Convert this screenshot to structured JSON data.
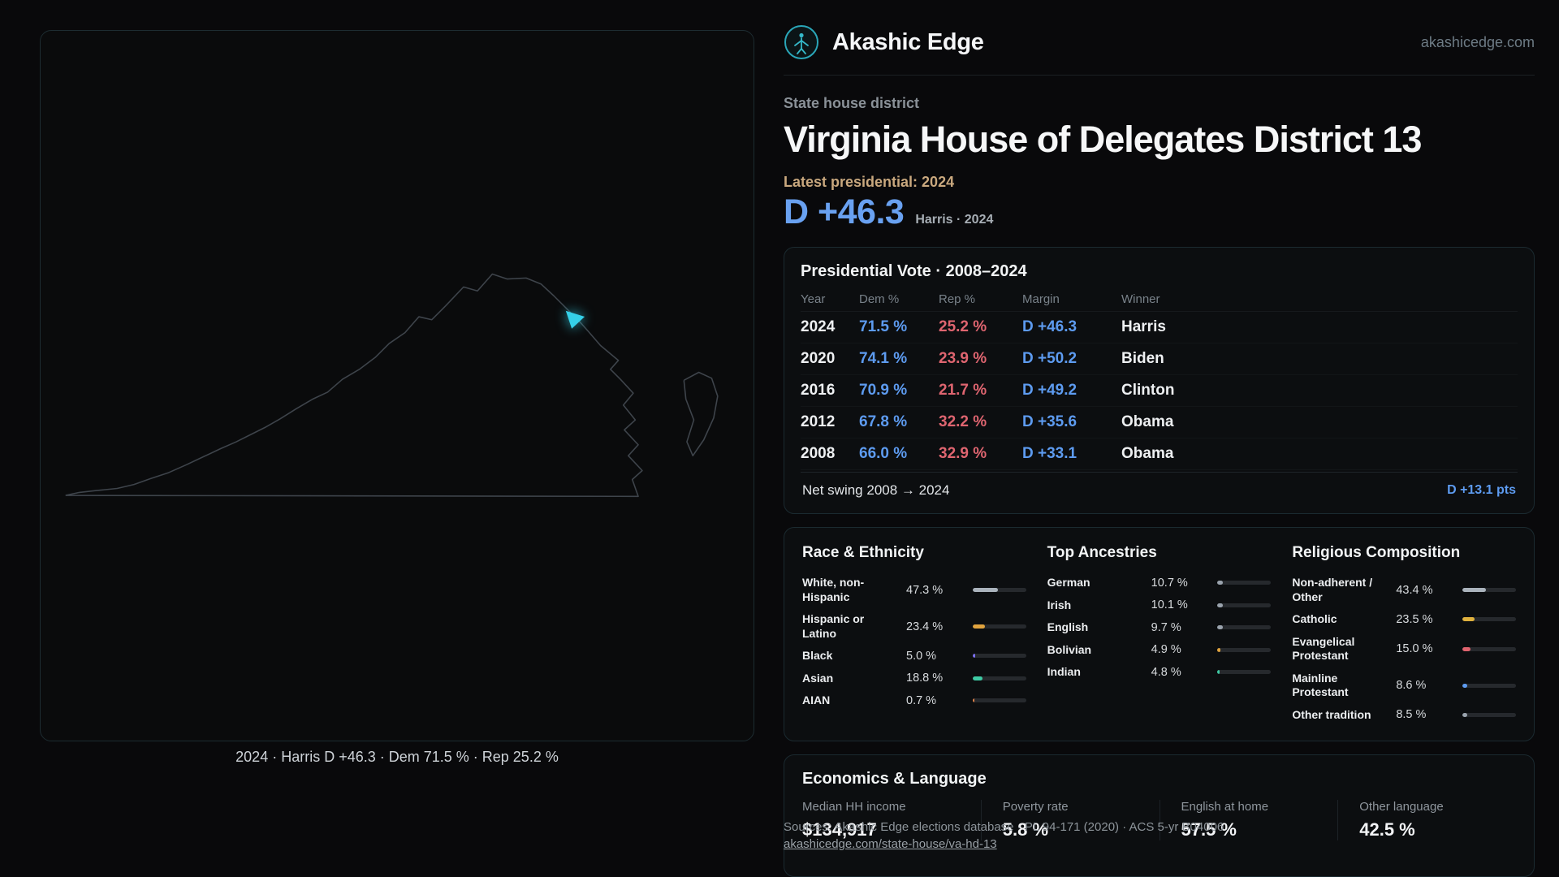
{
  "colors": {
    "dem_blue": "#5d9bf0",
    "rep_red": "#df6570",
    "accent_cyan": "#35d0e8",
    "brand_teal": "#2aa6b8",
    "gold_label": "#c9a87e"
  },
  "header": {
    "brand": "Akashic Edge",
    "site": "akashicedge.com"
  },
  "hero": {
    "kicker": "State house district",
    "title": "Virginia House of Delegates District 13",
    "latest_label": "Latest presidential: 2024",
    "margin": "D +46.3",
    "margin_context": "Harris · 2024"
  },
  "map": {
    "caption": "2024 · Harris D +46.3 · Dem 71.5 % · Rep 25.2 %"
  },
  "presidential": {
    "title": "Presidential Vote · 2008–2024",
    "columns": [
      "Year",
      "Dem %",
      "Rep %",
      "Margin",
      "Winner"
    ],
    "rows": [
      {
        "year": "2024",
        "dem": "71.5 %",
        "rep": "25.2 %",
        "margin": "D +46.3",
        "winner": "Harris"
      },
      {
        "year": "2020",
        "dem": "74.1 %",
        "rep": "23.9 %",
        "margin": "D +50.2",
        "winner": "Biden"
      },
      {
        "year": "2016",
        "dem": "70.9 %",
        "rep": "21.7 %",
        "margin": "D +49.2",
        "winner": "Clinton"
      },
      {
        "year": "2012",
        "dem": "67.8 %",
        "rep": "32.2 %",
        "margin": "D +35.6",
        "winner": "Obama"
      },
      {
        "year": "2008",
        "dem": "66.0 %",
        "rep": "32.9 %",
        "margin": "D +33.1",
        "winner": "Obama"
      }
    ],
    "net_swing_label": "Net swing 2008 → 2024",
    "net_swing_value": "D +13.1 pts"
  },
  "demographics": {
    "race": {
      "title": "Race & Ethnicity",
      "rows": [
        {
          "label": "White, non-Hispanic",
          "value": "47.3 %",
          "pct": 47.3,
          "color": "#aab3bc"
        },
        {
          "label": "Hispanic or Latino",
          "value": "23.4 %",
          "pct": 23.4,
          "color": "#e0a33e"
        },
        {
          "label": "Black",
          "value": "5.0 %",
          "pct": 5.0,
          "color": "#7b6ff0"
        },
        {
          "label": "Asian",
          "value": "18.8 %",
          "pct": 18.8,
          "color": "#3ecba4"
        },
        {
          "label": "AIAN",
          "value": "0.7 %",
          "pct": 0.7,
          "color": "#e0834a"
        }
      ]
    },
    "ancestries": {
      "title": "Top Ancestries",
      "rows": [
        {
          "label": "German",
          "value": "10.7 %",
          "pct": 10.7,
          "color": "#9aa3ad"
        },
        {
          "label": "Irish",
          "value": "10.1 %",
          "pct": 10.1,
          "color": "#9aa3ad"
        },
        {
          "label": "English",
          "value": "9.7 %",
          "pct": 9.7,
          "color": "#9aa3ad"
        },
        {
          "label": "Bolivian",
          "value": "4.9 %",
          "pct": 4.9,
          "color": "#e0a33e"
        },
        {
          "label": "Indian",
          "value": "4.8 %",
          "pct": 4.8,
          "color": "#3ecba4"
        }
      ]
    },
    "religion": {
      "title": "Religious Composition",
      "rows": [
        {
          "label": "Non-adherent / Other",
          "value": "43.4 %",
          "pct": 43.4,
          "color": "#aab3bc"
        },
        {
          "label": "Catholic",
          "value": "23.5 %",
          "pct": 23.5,
          "color": "#e0b23e"
        },
        {
          "label": "Evangelical Protestant",
          "value": "15.0 %",
          "pct": 15.0,
          "color": "#e0636e"
        },
        {
          "label": "Mainline Protestant",
          "value": "8.6 %",
          "pct": 8.6,
          "color": "#5d9bf0"
        },
        {
          "label": "Other tradition",
          "value": "8.5 %",
          "pct": 8.5,
          "color": "#9aa3ad"
        }
      ]
    }
  },
  "economics": {
    "title": "Economics & Language",
    "stats": [
      {
        "label": "Median HH income",
        "value": "$134,917"
      },
      {
        "label": "Poverty rate",
        "value": "5.8 %"
      },
      {
        "label": "English at home",
        "value": "57.5 %"
      },
      {
        "label": "Other language",
        "value": "42.5 %"
      }
    ]
  },
  "footer": {
    "sources": "Sources: Akashic Edge elections database · PL 94-171 (2020) · ACS 5-yr B04006",
    "link": "akashicedge.com/state-house/va-hd-13"
  }
}
